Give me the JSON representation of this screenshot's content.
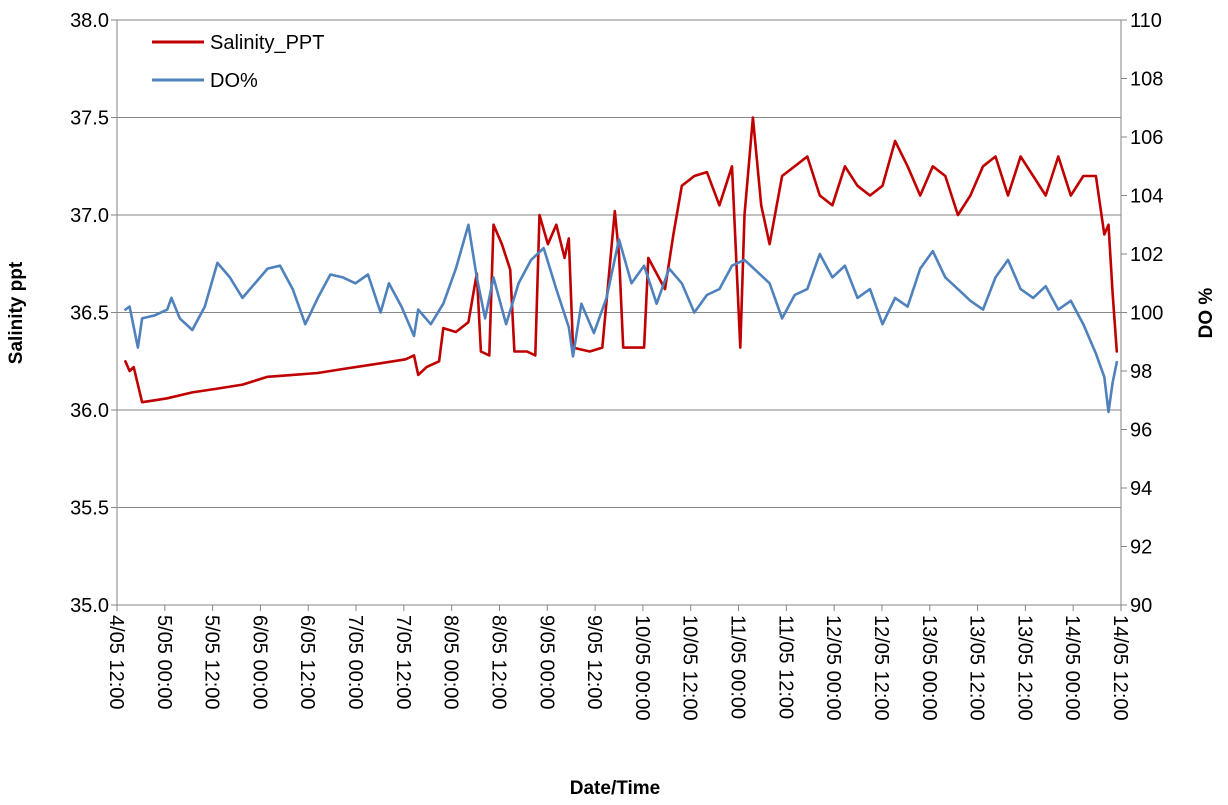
{
  "chart_data": {
    "type": "line",
    "title": "",
    "xlabel": "Date/Time",
    "ylabel": "Salinity ppt",
    "y2label": "DO %",
    "ylim": [
      35.0,
      38.0
    ],
    "y2lim": [
      90,
      110
    ],
    "yticks": [
      "35.0",
      "35.5",
      "36.0",
      "36.5",
      "37.0",
      "37.5",
      "38.0"
    ],
    "y2ticks": [
      "90",
      "92",
      "94",
      "96",
      "98",
      "100",
      "102",
      "104",
      "106",
      "108",
      "110"
    ],
    "xlim": [
      "2024-05-04 12:00",
      "2024-05-14 12:00"
    ],
    "xtick_labels": [
      "4/05 12:00",
      "5/05 00:00",
      "5/05 12:00",
      "6/05 00:00",
      "6/05 12:00",
      "7/05 00:00",
      "7/05 12:00",
      "8/05 00:00",
      "8/05 12:00",
      "9/05 00:00",
      "9/05 12:00",
      "10/05 00:00",
      "10/05 12:00",
      "11/05 00:00",
      "11/05 12:00",
      "12/05 00:00",
      "12/05 12:00",
      "13/05 00:00",
      "13/05 12:00",
      "13/05 12:00",
      "14/05 00:00",
      "14/05 12:00"
    ],
    "grid": true,
    "legend_position": "top-left",
    "series": [
      {
        "name": "Salinity_PPT",
        "axis": "left",
        "color": "#C00000",
        "points": [
          [
            "4/05 14:00",
            36.25
          ],
          [
            "4/05 15:00",
            36.2
          ],
          [
            "4/05 16:00",
            36.22
          ],
          [
            "4/05 18:00",
            36.04
          ],
          [
            "4/05 21:00",
            36.05
          ],
          [
            "5/05 00:00",
            36.06
          ],
          [
            "5/05 06:00",
            36.09
          ],
          [
            "5/05 12:00",
            36.11
          ],
          [
            "5/05 18:00",
            36.13
          ],
          [
            "6/05 00:00",
            36.17
          ],
          [
            "6/05 06:00",
            36.18
          ],
          [
            "6/05 12:00",
            36.19
          ],
          [
            "6/05 18:00",
            36.21
          ],
          [
            "7/05 00:00",
            36.23
          ],
          [
            "7/05 06:00",
            36.25
          ],
          [
            "7/05 09:00",
            36.26
          ],
          [
            "7/05 11:00",
            36.28
          ],
          [
            "7/05 12:00",
            36.18
          ],
          [
            "7/05 14:00",
            36.22
          ],
          [
            "7/05 17:00",
            36.25
          ],
          [
            "7/05 18:00",
            36.42
          ],
          [
            "7/05 21:00",
            36.4
          ],
          [
            "8/05 00:00",
            36.45
          ],
          [
            "8/05 02:00",
            36.7
          ],
          [
            "8/05 03:00",
            36.3
          ],
          [
            "8/05 05:00",
            36.28
          ],
          [
            "8/05 06:00",
            36.95
          ],
          [
            "8/05 08:00",
            36.85
          ],
          [
            "8/05 10:00",
            36.72
          ],
          [
            "8/05 11:00",
            36.3
          ],
          [
            "8/05 14:00",
            36.3
          ],
          [
            "8/05 16:00",
            36.28
          ],
          [
            "8/05 17:00",
            37.0
          ],
          [
            "8/05 19:00",
            36.85
          ],
          [
            "8/05 21:00",
            36.95
          ],
          [
            "8/05 23:00",
            36.78
          ],
          [
            "9/05 00:00",
            36.88
          ],
          [
            "9/05 01:00",
            36.32
          ],
          [
            "9/05 05:00",
            36.3
          ],
          [
            "9/05 08:00",
            36.32
          ],
          [
            "9/05 11:00",
            37.02
          ],
          [
            "9/05 12:00",
            36.8
          ],
          [
            "9/05 13:00",
            36.32
          ],
          [
            "9/05 18:00",
            36.32
          ],
          [
            "9/05 19:00",
            36.78
          ],
          [
            "9/05 21:00",
            36.7
          ],
          [
            "9/05 23:00",
            36.62
          ],
          [
            "10/05 01:00",
            36.9
          ],
          [
            "10/05 03:00",
            37.15
          ],
          [
            "10/05 06:00",
            37.2
          ],
          [
            "10/05 09:00",
            37.22
          ],
          [
            "10/05 12:00",
            37.05
          ],
          [
            "10/05 15:00",
            37.25
          ],
          [
            "10/05 17:00",
            36.32
          ],
          [
            "10/05 18:00",
            37.0
          ],
          [
            "10/05 20:00",
            37.5
          ],
          [
            "10/05 22:00",
            37.05
          ],
          [
            "11/05 00:00",
            36.85
          ],
          [
            "11/05 03:00",
            37.2
          ],
          [
            "11/05 06:00",
            37.25
          ],
          [
            "11/05 09:00",
            37.3
          ],
          [
            "11/05 12:00",
            37.1
          ],
          [
            "11/05 15:00",
            37.05
          ],
          [
            "11/05 18:00",
            37.25
          ],
          [
            "11/05 21:00",
            37.15
          ],
          [
            "12/05 00:00",
            37.1
          ],
          [
            "12/05 03:00",
            37.15
          ],
          [
            "12/05 06:00",
            37.38
          ],
          [
            "12/05 09:00",
            37.25
          ],
          [
            "12/05 12:00",
            37.1
          ],
          [
            "12/05 15:00",
            37.25
          ],
          [
            "12/05 18:00",
            37.2
          ],
          [
            "12/05 21:00",
            37.0
          ],
          [
            "13/05 00:00",
            37.1
          ],
          [
            "13/05 03:00",
            37.25
          ],
          [
            "13/05 06:00",
            37.3
          ],
          [
            "13/05 09:00",
            37.1
          ],
          [
            "13/05 12:00",
            37.3
          ],
          [
            "13/05 15:00",
            37.2
          ],
          [
            "13/05 18:00",
            37.1
          ],
          [
            "13/05 21:00",
            37.3
          ],
          [
            "14/05 00:00",
            37.1
          ],
          [
            "14/05 03:00",
            37.2
          ],
          [
            "14/05 06:00",
            37.2
          ],
          [
            "14/05 08:00",
            36.9
          ],
          [
            "14/05 09:00",
            36.95
          ],
          [
            "14/05 10:00",
            36.6
          ],
          [
            "14/05 11:00",
            36.3
          ]
        ]
      },
      {
        "name": "DO%",
        "axis": "right",
        "color": "#4F81BD",
        "points": [
          [
            "4/05 14:00",
            100.1
          ],
          [
            "4/05 15:00",
            100.2
          ],
          [
            "4/05 17:00",
            98.8
          ],
          [
            "4/05 18:00",
            99.8
          ],
          [
            "4/05 21:00",
            99.9
          ],
          [
            "5/05 00:00",
            100.1
          ],
          [
            "5/05 01:00",
            100.5
          ],
          [
            "5/05 03:00",
            99.8
          ],
          [
            "5/05 06:00",
            99.4
          ],
          [
            "5/05 09:00",
            100.2
          ],
          [
            "5/05 12:00",
            101.7
          ],
          [
            "5/05 15:00",
            101.2
          ],
          [
            "5/05 18:00",
            100.5
          ],
          [
            "6/05 00:00",
            101.5
          ],
          [
            "6/05 03:00",
            101.6
          ],
          [
            "6/05 06:00",
            100.8
          ],
          [
            "6/05 09:00",
            99.6
          ],
          [
            "6/05 12:00",
            100.5
          ],
          [
            "6/05 15:00",
            101.3
          ],
          [
            "6/05 18:00",
            101.2
          ],
          [
            "6/05 21:00",
            101.0
          ],
          [
            "7/05 00:00",
            101.3
          ],
          [
            "7/05 03:00",
            100.0
          ],
          [
            "7/05 05:00",
            101.0
          ],
          [
            "7/05 08:00",
            100.2
          ],
          [
            "7/05 11:00",
            99.2
          ],
          [
            "7/05 12:00",
            100.1
          ],
          [
            "7/05 15:00",
            99.6
          ],
          [
            "7/05 18:00",
            100.3
          ],
          [
            "7/05 21:00",
            101.5
          ],
          [
            "8/05 00:00",
            103.0
          ],
          [
            "8/05 02:00",
            101.2
          ],
          [
            "8/05 04:00",
            99.8
          ],
          [
            "8/05 06:00",
            101.2
          ],
          [
            "8/05 09:00",
            99.6
          ],
          [
            "8/05 12:00",
            101.0
          ],
          [
            "8/05 15:00",
            101.8
          ],
          [
            "8/05 18:00",
            102.2
          ],
          [
            "8/05 21:00",
            100.8
          ],
          [
            "9/05 00:00",
            99.5
          ],
          [
            "9/05 01:00",
            98.5
          ],
          [
            "9/05 03:00",
            100.3
          ],
          [
            "9/05 06:00",
            99.3
          ],
          [
            "9/05 09:00",
            100.5
          ],
          [
            "9/05 12:00",
            102.5
          ],
          [
            "9/05 15:00",
            101.0
          ],
          [
            "9/05 18:00",
            101.6
          ],
          [
            "9/05 21:00",
            100.3
          ],
          [
            "10/05 00:00",
            101.5
          ],
          [
            "10/05 03:00",
            101.0
          ],
          [
            "10/05 06:00",
            100.0
          ],
          [
            "10/05 09:00",
            100.6
          ],
          [
            "10/05 12:00",
            100.8
          ],
          [
            "10/05 15:00",
            101.6
          ],
          [
            "10/05 18:00",
            101.8
          ],
          [
            "10/05 21:00",
            101.4
          ],
          [
            "11/05 00:00",
            101.0
          ],
          [
            "11/05 03:00",
            99.8
          ],
          [
            "11/05 06:00",
            100.6
          ],
          [
            "11/05 09:00",
            100.8
          ],
          [
            "11/05 12:00",
            102.0
          ],
          [
            "11/05 15:00",
            101.2
          ],
          [
            "11/05 18:00",
            101.6
          ],
          [
            "11/05 21:00",
            100.5
          ],
          [
            "12/05 00:00",
            100.8
          ],
          [
            "12/05 03:00",
            99.6
          ],
          [
            "12/05 06:00",
            100.5
          ],
          [
            "12/05 09:00",
            100.2
          ],
          [
            "12/05 12:00",
            101.5
          ],
          [
            "12/05 15:00",
            102.1
          ],
          [
            "12/05 18:00",
            101.2
          ],
          [
            "12/05 21:00",
            100.8
          ],
          [
            "13/05 00:00",
            100.4
          ],
          [
            "13/05 03:00",
            100.1
          ],
          [
            "13/05 06:00",
            101.2
          ],
          [
            "13/05 09:00",
            101.8
          ],
          [
            "13/05 12:00",
            100.8
          ],
          [
            "13/05 15:00",
            100.5
          ],
          [
            "13/05 18:00",
            100.9
          ],
          [
            "13/05 21:00",
            100.1
          ],
          [
            "14/05 00:00",
            100.4
          ],
          [
            "14/05 03:00",
            99.6
          ],
          [
            "14/05 06:00",
            98.6
          ],
          [
            "14/05 08:00",
            97.8
          ],
          [
            "14/05 09:00",
            96.6
          ],
          [
            "14/05 10:00",
            97.6
          ],
          [
            "14/05 11:00",
            98.3
          ]
        ]
      }
    ]
  }
}
